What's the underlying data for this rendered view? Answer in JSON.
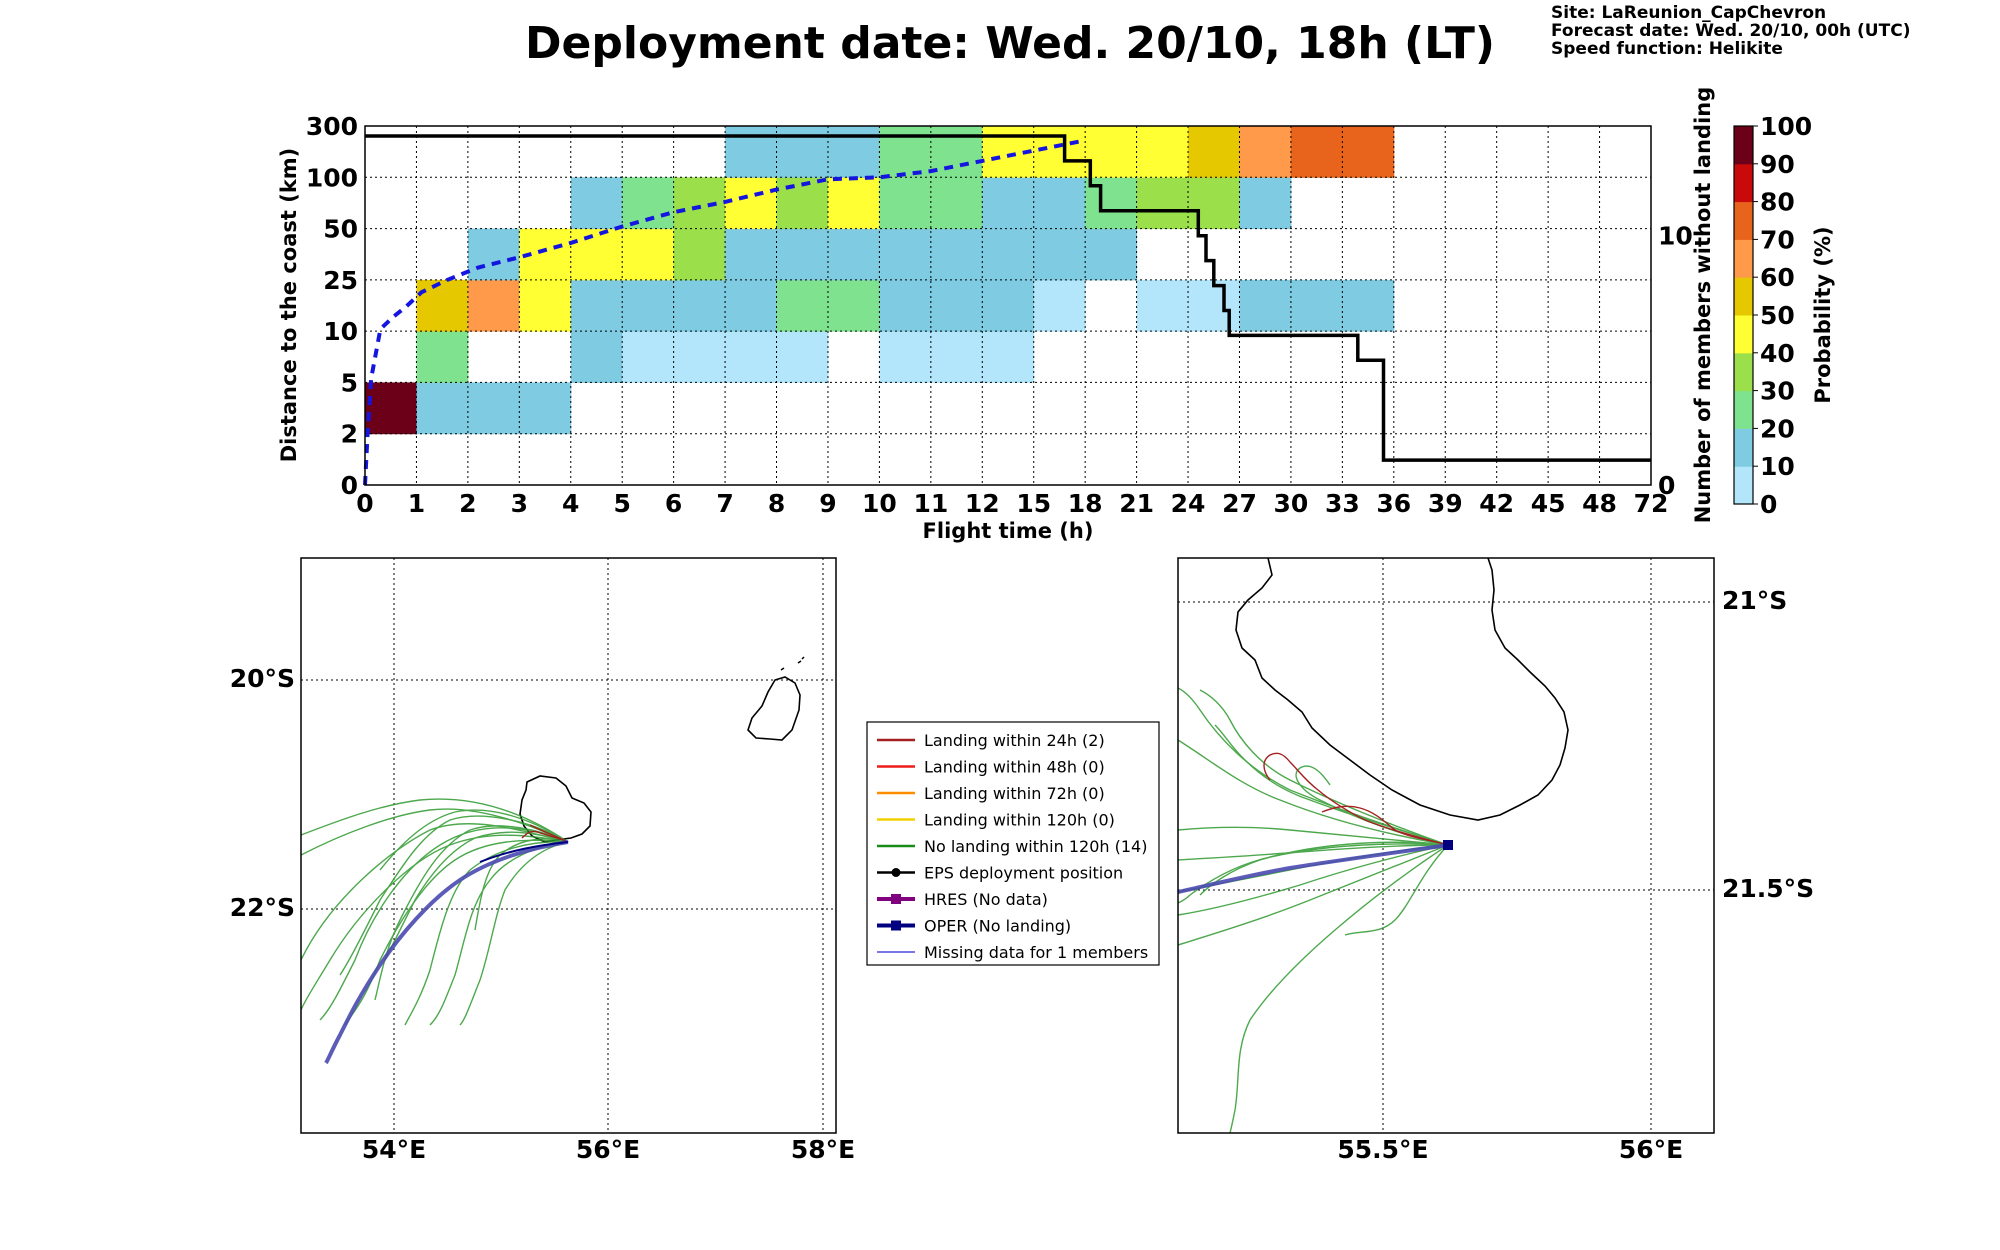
{
  "header": {
    "title": "Deployment date: Wed. 20/10, 18h (LT)",
    "site": "Site: LaReunion_CapChevron",
    "forecast": "Forecast date: Wed. 20/10, 00h (UTC)",
    "speed": "Speed function: Helikite"
  },
  "chart_data": [
    {
      "type": "heatmap",
      "title": "Deployment date: Wed. 20/10, 18h (LT)",
      "xlabel": "Flight time (h)",
      "ylabel": "Distance to the coast (km)",
      "ylabel_right": "Number of members without landing",
      "colorbar_label": "Probability (%)",
      "x_ticks": [
        "0",
        "1",
        "2",
        "3",
        "4",
        "5",
        "6",
        "7",
        "8",
        "9",
        "10",
        "11",
        "12",
        "15",
        "18",
        "21",
        "24",
        "27",
        "30",
        "33",
        "36",
        "39",
        "42",
        "45",
        "48",
        "72"
      ],
      "y_ticks": [
        "0",
        "2",
        "5",
        "10",
        "25",
        "50",
        "100",
        "300"
      ],
      "right_y_ticks": [
        "0",
        "10"
      ],
      "right_ylim": [
        0,
        14.4
      ],
      "colorbar_ticks": [
        "0",
        "10",
        "20",
        "30",
        "40",
        "50",
        "60",
        "70",
        "80",
        "90",
        "100"
      ],
      "colorbar_colors": [
        "#b3e6fa",
        "#7ecbe2",
        "#7fe28f",
        "#9be04a",
        "#ffff33",
        "#e6c800",
        "#ff9a4a",
        "#e8641c",
        "#c80a0a",
        "#6b0018"
      ],
      "cells_note": "col = x tick interval index, row = distance band index (0: 0-2 km ... 6: 100-300 km), value in %",
      "cells": [
        {
          "col": 0,
          "row": 1,
          "value": 95
        },
        {
          "col": 1,
          "row": 1,
          "value": 10
        },
        {
          "col": 2,
          "row": 1,
          "value": 10
        },
        {
          "col": 3,
          "row": 1,
          "value": 10
        },
        {
          "col": 1,
          "row": 2,
          "value": 20
        },
        {
          "col": 4,
          "row": 2,
          "value": 10
        },
        {
          "col": 5,
          "row": 2,
          "value": 5
        },
        {
          "col": 6,
          "row": 2,
          "value": 5
        },
        {
          "col": 7,
          "row": 2,
          "value": 5
        },
        {
          "col": 8,
          "row": 2,
          "value": 5
        },
        {
          "col": 10,
          "row": 2,
          "value": 5
        },
        {
          "col": 11,
          "row": 2,
          "value": 5
        },
        {
          "col": 12,
          "row": 2,
          "value": 5
        },
        {
          "col": 1,
          "row": 3,
          "value": 55
        },
        {
          "col": 2,
          "row": 3,
          "value": 65
        },
        {
          "col": 3,
          "row": 3,
          "value": 45
        },
        {
          "col": 4,
          "row": 3,
          "value": 10
        },
        {
          "col": 5,
          "row": 3,
          "value": 10
        },
        {
          "col": 6,
          "row": 3,
          "value": 10
        },
        {
          "col": 7,
          "row": 3,
          "value": 10
        },
        {
          "col": 8,
          "row": 3,
          "value": 25
        },
        {
          "col": 9,
          "row": 3,
          "value": 25
        },
        {
          "col": 10,
          "row": 3,
          "value": 10
        },
        {
          "col": 11,
          "row": 3,
          "value": 10
        },
        {
          "col": 12,
          "row": 3,
          "value": 10
        },
        {
          "col": 13,
          "row": 3,
          "value": 5
        },
        {
          "col": 15,
          "row": 3,
          "value": 5
        },
        {
          "col": 16,
          "row": 3,
          "value": 5
        },
        {
          "col": 17,
          "row": 3,
          "value": 10
        },
        {
          "col": 18,
          "row": 3,
          "value": 10
        },
        {
          "col": 19,
          "row": 3,
          "value": 10
        },
        {
          "col": 2,
          "row": 4,
          "value": 10
        },
        {
          "col": 3,
          "row": 4,
          "value": 45
        },
        {
          "col": 4,
          "row": 4,
          "value": 45
        },
        {
          "col": 5,
          "row": 4,
          "value": 45
        },
        {
          "col": 6,
          "row": 4,
          "value": 35
        },
        {
          "col": 7,
          "row": 4,
          "value": 10
        },
        {
          "col": 8,
          "row": 4,
          "value": 10
        },
        {
          "col": 9,
          "row": 4,
          "value": 10
        },
        {
          "col": 10,
          "row": 4,
          "value": 10
        },
        {
          "col": 11,
          "row": 4,
          "value": 10
        },
        {
          "col": 12,
          "row": 4,
          "value": 10
        },
        {
          "col": 13,
          "row": 4,
          "value": 10
        },
        {
          "col": 14,
          "row": 4,
          "value": 10
        },
        {
          "col": 4,
          "row": 5,
          "value": 10
        },
        {
          "col": 5,
          "row": 5,
          "value": 25
        },
        {
          "col": 6,
          "row": 5,
          "value": 35
        },
        {
          "col": 7,
          "row": 5,
          "value": 45
        },
        {
          "col": 8,
          "row": 5,
          "value": 35
        },
        {
          "col": 9,
          "row": 5,
          "value": 45
        },
        {
          "col": 10,
          "row": 5,
          "value": 25
        },
        {
          "col": 11,
          "row": 5,
          "value": 25
        },
        {
          "col": 12,
          "row": 5,
          "value": 10
        },
        {
          "col": 13,
          "row": 5,
          "value": 10
        },
        {
          "col": 14,
          "row": 5,
          "value": 25
        },
        {
          "col": 15,
          "row": 5,
          "value": 35
        },
        {
          "col": 16,
          "row": 5,
          "value": 35
        },
        {
          "col": 17,
          "row": 5,
          "value": 10
        },
        {
          "col": 7,
          "row": 6,
          "value": 10
        },
        {
          "col": 8,
          "row": 6,
          "value": 10
        },
        {
          "col": 9,
          "row": 6,
          "value": 10
        },
        {
          "col": 10,
          "row": 6,
          "value": 25
        },
        {
          "col": 11,
          "row": 6,
          "value": 25
        },
        {
          "col": 12,
          "row": 6,
          "value": 45
        },
        {
          "col": 13,
          "row": 6,
          "value": 45
        },
        {
          "col": 14,
          "row": 6,
          "value": 45
        },
        {
          "col": 15,
          "row": 6,
          "value": 45
        },
        {
          "col": 16,
          "row": 6,
          "value": 55
        },
        {
          "col": 17,
          "row": 6,
          "value": 65
        },
        {
          "col": 18,
          "row": 6,
          "value": 75
        },
        {
          "col": 19,
          "row": 6,
          "value": 75
        }
      ],
      "members_without_landing_step": [
        {
          "x": 0,
          "y": 14
        },
        {
          "x": 13.6,
          "y": 14
        },
        {
          "x": 13.6,
          "y": 13
        },
        {
          "x": 14.1,
          "y": 13
        },
        {
          "x": 14.1,
          "y": 12
        },
        {
          "x": 14.3,
          "y": 12
        },
        {
          "x": 14.3,
          "y": 11
        },
        {
          "x": 16.2,
          "y": 11
        },
        {
          "x": 16.2,
          "y": 10
        },
        {
          "x": 16.35,
          "y": 10
        },
        {
          "x": 16.35,
          "y": 9
        },
        {
          "x": 16.5,
          "y": 9
        },
        {
          "x": 16.5,
          "y": 8
        },
        {
          "x": 16.7,
          "y": 8
        },
        {
          "x": 16.7,
          "y": 7
        },
        {
          "x": 16.8,
          "y": 7
        },
        {
          "x": 16.8,
          "y": 6
        },
        {
          "x": 19.3,
          "y": 6
        },
        {
          "x": 19.3,
          "y": 5
        },
        {
          "x": 19.8,
          "y": 5
        },
        {
          "x": 19.8,
          "y": 1
        },
        {
          "x": 25,
          "y": 1
        }
      ],
      "median_distance_curve": [
        {
          "x": 0,
          "y": 0
        },
        {
          "x": 0.05,
          "y": 2.5
        },
        {
          "x": 0.12,
          "y": 5.2
        },
        {
          "x": 0.3,
          "y": 7.6
        },
        {
          "x": 0.55,
          "y": 8.2
        },
        {
          "x": 0.8,
          "y": 8.7
        },
        {
          "x": 1.1,
          "y": 9.4
        },
        {
          "x": 1.6,
          "y": 10.0
        },
        {
          "x": 2.2,
          "y": 10.6
        },
        {
          "x": 3,
          "y": 11.1
        },
        {
          "x": 4,
          "y": 11.8
        },
        {
          "x": 5,
          "y": 12.6
        },
        {
          "x": 6,
          "y": 13.3
        },
        {
          "x": 7,
          "y": 13.8
        },
        {
          "x": 8,
          "y": 14.4
        },
        {
          "x": 9,
          "y": 14.9
        },
        {
          "x": 10,
          "y": 15.0
        },
        {
          "x": 11,
          "y": 15.3
        },
        {
          "x": 12,
          "y": 15.8
        },
        {
          "x": 13,
          "y": 16.3
        },
        {
          "x": 14,
          "y": 16.8
        }
      ]
    }
  ],
  "legend": {
    "items": [
      {
        "label": "Landing within 24h (2)",
        "color": "#a52020",
        "kind": "line"
      },
      {
        "label": "Landing within 48h (0)",
        "color": "#ee1c1c",
        "kind": "line"
      },
      {
        "label": "Landing within 72h (0)",
        "color": "#ff8c00",
        "kind": "line"
      },
      {
        "label": "Landing within 120h (0)",
        "color": "#f0d000",
        "kind": "line"
      },
      {
        "label": "No landing within 120h (14)",
        "color": "#1a8a1a",
        "kind": "line"
      },
      {
        "label": "EPS deployment position",
        "color": "#000000",
        "kind": "marker-circle"
      },
      {
        "label": "HRES (No data)",
        "color": "#800080",
        "kind": "marker-square"
      },
      {
        "label": "OPER (No landing)",
        "color": "#000080",
        "kind": "marker-square"
      },
      {
        "label": "Missing data for 1 members",
        "color": "#4a4ae0",
        "kind": "thin-line"
      }
    ]
  },
  "map_left": {
    "lon_labels": [
      "54°E",
      "56°E",
      "58°E"
    ],
    "lat_labels": [
      "20°S",
      "22°S"
    ]
  },
  "map_right": {
    "lon_labels": [
      "55.5°E",
      "56°E"
    ],
    "lat_labels": [
      "21°S",
      "21.5°S"
    ]
  }
}
